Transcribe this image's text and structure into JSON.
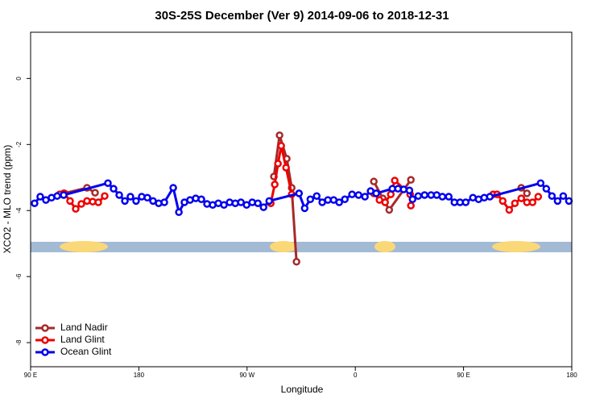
{
  "chart_data": {
    "type": "line",
    "title": "30S-25S December (Ver 9)   2014-09-06 to 2018-12-31",
    "x_label": "Longitude",
    "y_label": "XCO2 - MLO trend (ppm)",
    "xlim": [
      90,
      540
    ],
    "ylim": [
      -8.73,
      1.4
    ],
    "xticks": [
      {
        "value": 90,
        "label": "90 E"
      },
      180,
      {
        "value": 270,
        "label": "90 W"
      },
      {
        "value": 360,
        "label": "0"
      },
      {
        "value": 450,
        "label": "90 E"
      },
      {
        "value": 540,
        "label": "180"
      }
    ],
    "yticks": [
      0,
      -2,
      -4,
      -6,
      -8
    ],
    "legend": "bottom-left",
    "series": [
      {
        "name": "Land Nadir",
        "color": "#a52a2a",
        "x": [
          117.5,
          136.9,
          143.6,
          null,
          292.3,
          297,
          303,
          307.1,
          311.1,
          null,
          375.4,
          382.8,
          388.2,
          406.2,
          null,
          498,
          502.7
        ],
        "values": [
          -3.48,
          -3.31,
          -3.46,
          null,
          -2.97,
          -1.72,
          -2.43,
          -3.31,
          -5.55,
          null,
          -3.12,
          -3.63,
          -3.98,
          -3.07,
          null,
          -3.31,
          -3.48
        ]
      },
      {
        "name": "Land Glint",
        "color": "#ee0000",
        "x": [
          114.1,
          118.1,
          122.8,
          127.5,
          132.2,
          136.9,
          141.6,
          146.3,
          151.6,
          null,
          289.7,
          293,
          295.7,
          298.4,
          302.4,
          307.1,
          null,
          375.4,
          380.1,
          384.8,
          389.5,
          392.8,
          405.6,
          406.2,
          null,
          474.6,
          477.9,
          482.6,
          488,
          492.7,
          498,
          502.7,
          507.4,
          512.1
        ],
        "values": [
          -3.51,
          -3.48,
          -3.71,
          -3.95,
          -3.8,
          -3.71,
          -3.73,
          -3.75,
          -3.56,
          null,
          -3.78,
          -3.21,
          -2.58,
          -2.04,
          -2.7,
          -3.51,
          null,
          -3.48,
          -3.68,
          -3.75,
          -3.51,
          -3.09,
          -3.51,
          -3.85,
          null,
          -3.51,
          -3.51,
          -3.71,
          -3.98,
          -3.78,
          -3.63,
          -3.75,
          -3.75,
          -3.58
        ]
      },
      {
        "name": "Ocean Glint",
        "color": "#0000ee",
        "x": [
          93.3,
          98,
          102.7,
          107.4,
          112.1,
          117.5,
          154.3,
          159,
          163.7,
          168.4,
          173,
          177.7,
          182.4,
          187.1,
          191.8,
          196.5,
          201.2,
          208.6,
          213.3,
          217.9,
          222.6,
          227.3,
          232,
          236.7,
          241.4,
          246.1,
          250.8,
          255.5,
          260.2,
          264.9,
          269.6,
          274.3,
          279,
          283.7,
          288.4,
          313.2,
          317.9,
          322.6,
          327.9,
          332.5,
          337.2,
          342,
          346.6,
          351.3,
          357.3,
          362.7,
          368,
          372.7,
          377.4,
          390.8,
          395.5,
          400.2,
          405,
          407.6,
          412.3,
          417.6,
          423,
          427.7,
          432.4,
          437.7,
          442.4,
          447.1,
          451.8,
          457.8,
          462.5,
          467.2,
          471.9,
          514.1,
          518.8,
          523.5,
          528.2,
          532.9,
          537.6
        ],
        "values": [
          -3.78,
          -3.58,
          -3.68,
          -3.61,
          -3.56,
          -3.53,
          -3.17,
          -3.34,
          -3.53,
          -3.71,
          -3.58,
          -3.71,
          -3.58,
          -3.61,
          -3.71,
          -3.78,
          -3.75,
          -3.31,
          -4.05,
          -3.75,
          -3.68,
          -3.63,
          -3.66,
          -3.8,
          -3.83,
          -3.78,
          -3.83,
          -3.75,
          -3.78,
          -3.75,
          -3.83,
          -3.75,
          -3.78,
          -3.9,
          -3.71,
          -3.48,
          -3.93,
          -3.66,
          -3.56,
          -3.75,
          -3.68,
          -3.68,
          -3.75,
          -3.66,
          -3.51,
          -3.53,
          -3.58,
          -3.41,
          -3.48,
          -3.34,
          -3.34,
          -3.36,
          -3.39,
          -3.66,
          -3.56,
          -3.53,
          -3.53,
          -3.53,
          -3.58,
          -3.58,
          -3.75,
          -3.75,
          -3.75,
          -3.61,
          -3.66,
          -3.61,
          -3.58,
          -3.17,
          -3.34,
          -3.56,
          -3.71,
          -3.56,
          -3.71
        ]
      }
    ]
  }
}
